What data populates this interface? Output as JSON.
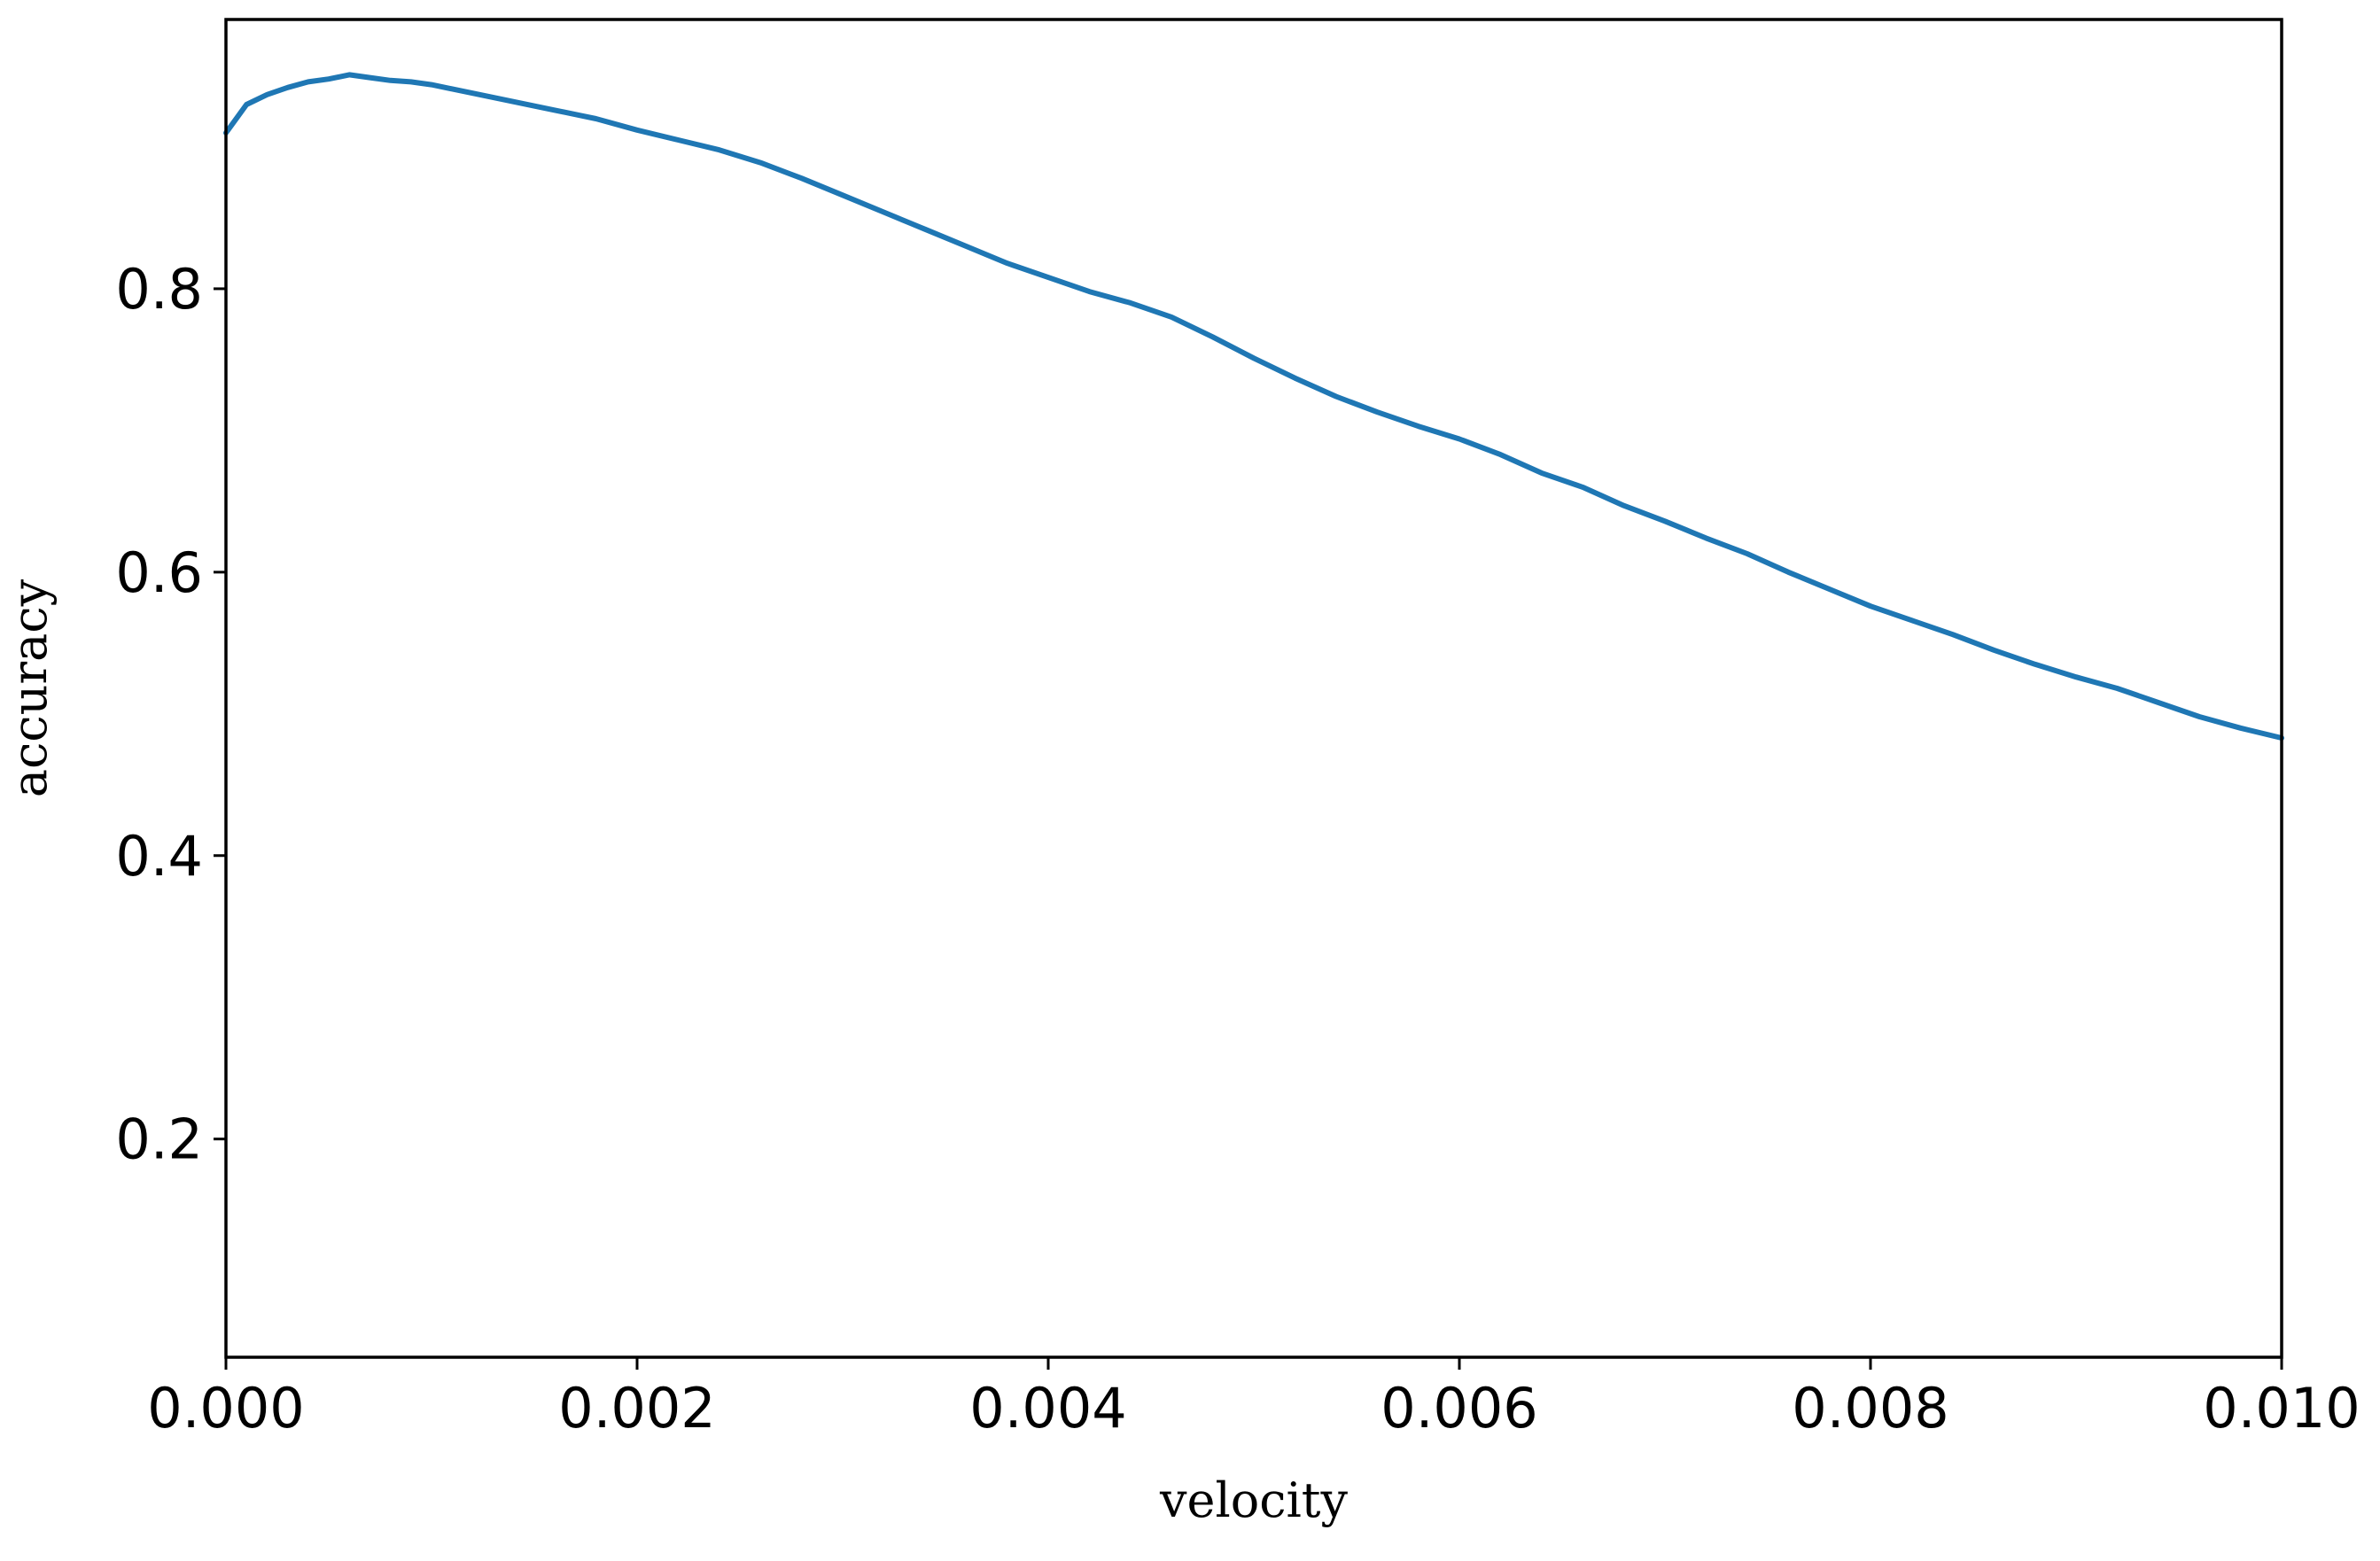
{
  "chart_data": {
    "type": "line",
    "title": "",
    "xlabel": "velocity",
    "ylabel": "accuracy",
    "xlim": [
      0.0,
      0.01
    ],
    "ylim": [
      0.046,
      0.99
    ],
    "grid": false,
    "legend": "none",
    "x_ticks": [
      0.0,
      0.002,
      0.004,
      0.006,
      0.008,
      0.01
    ],
    "x_tick_labels": [
      "0.000",
      "0.002",
      "0.004",
      "0.006",
      "0.008",
      "0.010"
    ],
    "y_ticks": [
      0.2,
      0.4,
      0.6,
      0.8
    ],
    "y_tick_labels": [
      "0.2",
      "0.4",
      "0.6",
      "0.8"
    ],
    "series": [
      {
        "color": "#1f77b4",
        "x": [
          0.0,
          0.0001,
          0.0002,
          0.0003,
          0.0004,
          0.0005,
          0.0006,
          0.0007,
          0.0008,
          0.0009,
          0.001,
          0.0012,
          0.0014,
          0.0016,
          0.0018,
          0.002,
          0.0022,
          0.0024,
          0.0026,
          0.0028,
          0.003,
          0.0032,
          0.0034,
          0.0036,
          0.0038,
          0.004,
          0.0042,
          0.0044,
          0.0046,
          0.0048,
          0.005,
          0.0052,
          0.0054,
          0.0056,
          0.0058,
          0.006,
          0.0062,
          0.0064,
          0.0066,
          0.0068,
          0.007,
          0.0072,
          0.0074,
          0.0076,
          0.0078,
          0.008,
          0.0082,
          0.0084,
          0.0086,
          0.0088,
          0.009,
          0.0092,
          0.0094,
          0.0096,
          0.0098,
          0.01
        ],
        "y": [
          0.91,
          0.93,
          0.937,
          0.942,
          0.946,
          0.948,
          0.951,
          0.949,
          0.947,
          0.946,
          0.944,
          0.938,
          0.932,
          0.926,
          0.92,
          0.912,
          0.905,
          0.898,
          0.889,
          0.878,
          0.866,
          0.854,
          0.842,
          0.83,
          0.818,
          0.808,
          0.798,
          0.79,
          0.78,
          0.766,
          0.751,
          0.737,
          0.724,
          0.713,
          0.703,
          0.694,
          0.683,
          0.67,
          0.66,
          0.647,
          0.636,
          0.624,
          0.613,
          0.6,
          0.588,
          0.576,
          0.566,
          0.556,
          0.545,
          0.535,
          0.526,
          0.518,
          0.508,
          0.498,
          0.49,
          0.483
        ]
      }
    ]
  }
}
